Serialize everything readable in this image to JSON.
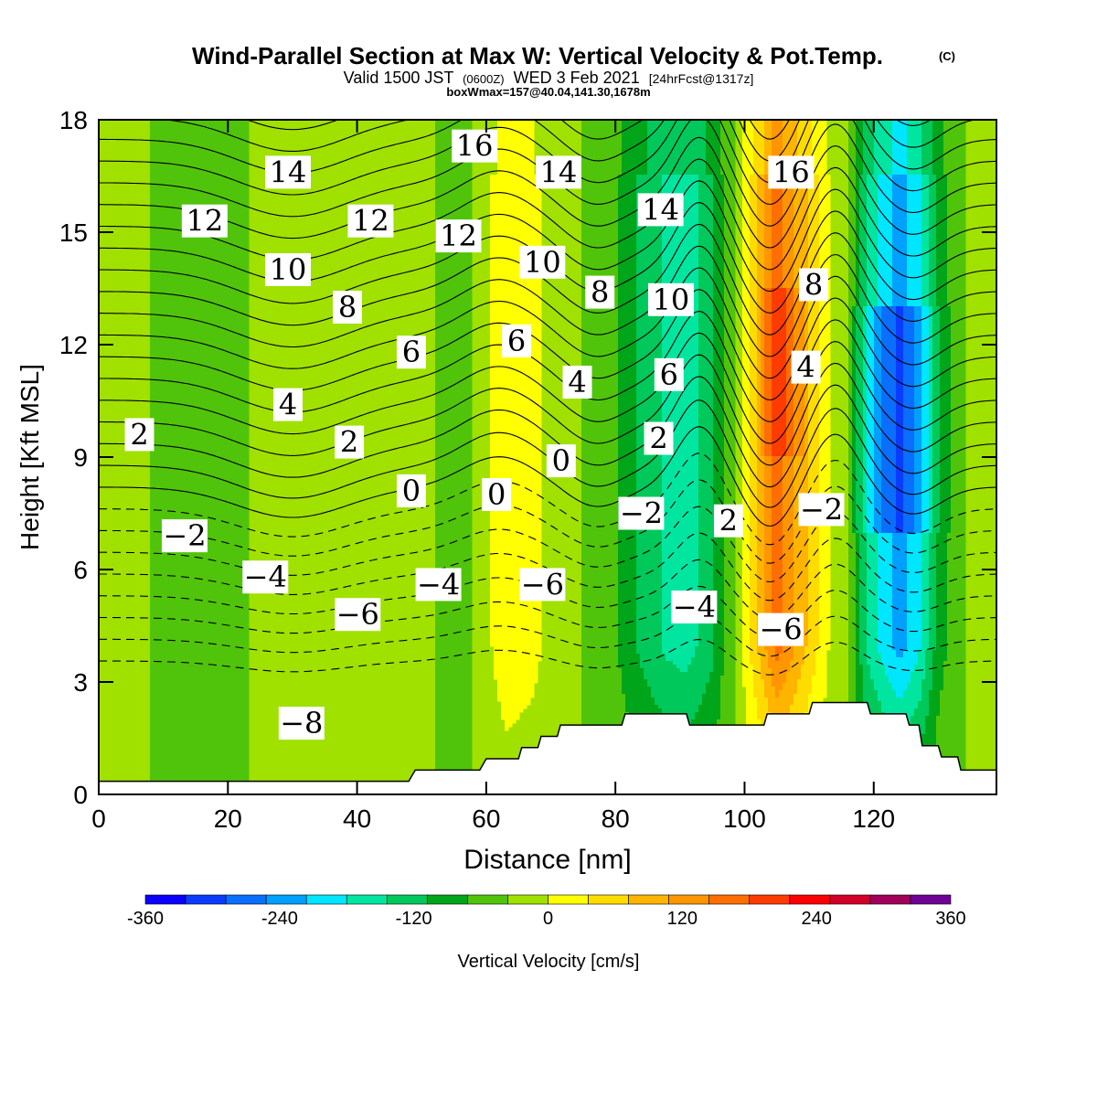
{
  "title": {
    "main": "Wind-Parallel Section at Max W: Vertical Velocity & Pot.Temp.",
    "copyright": "(C)",
    "valid_prefix": "Valid 1500 JST",
    "valid_utc": "(0600Z)",
    "valid_date": "WED 3 Feb 2021",
    "forecast": "[24hrFcst@1317z]",
    "boxinfo": "boxWmax=157@40.04,141.30,1678m"
  },
  "chart_data": {
    "type": "heatmap",
    "xlabel": "Distance [nm]",
    "ylabel": "Height [Kft MSL]",
    "xlim": [
      0,
      139
    ],
    "ylim": [
      0,
      18
    ],
    "xticks": [
      "0",
      "20",
      "40",
      "60",
      "80",
      "100",
      "120"
    ],
    "yticks": [
      "0",
      "3",
      "6",
      "9",
      "12",
      "15",
      "18"
    ],
    "colorbar": {
      "label": "Vertical Velocity [cm/s]",
      "range": [
        -360,
        360
      ],
      "step": 40,
      "tick_labels": [
        "-360",
        "-240",
        "-120",
        "0",
        "120",
        "240",
        "360"
      ],
      "colors": [
        "#0a00ff",
        "#0a3cff",
        "#0a6eff",
        "#00a0ff",
        "#00e6ff",
        "#00e6a0",
        "#00c85a",
        "#00a51a",
        "#50c40a",
        "#a0e100",
        "#ffff00",
        "#ffdc00",
        "#ffb400",
        "#ff9600",
        "#ff6e00",
        "#ff3c00",
        "#ff0000",
        "#d20028",
        "#a0005a",
        "#6e0096"
      ]
    },
    "velocity_columns": [
      {
        "x": 0,
        "w": 0
      },
      {
        "x": 4,
        "w": 10
      },
      {
        "x": 10,
        "w": -5
      },
      {
        "x": 20,
        "w": -5
      },
      {
        "x": 30,
        "w": 12
      },
      {
        "x": 40,
        "w": 15
      },
      {
        "x": 48,
        "w": 6
      },
      {
        "x": 55,
        "w": -5
      },
      {
        "x": 58,
        "w": 0
      },
      {
        "x": 63,
        "w": 70
      },
      {
        "x": 67,
        "w": 55
      },
      {
        "x": 72,
        "w": 10
      },
      {
        "x": 78,
        "w": -10
      },
      {
        "x": 84,
        "w": -90
      },
      {
        "x": 88,
        "w": -130
      },
      {
        "x": 91,
        "w": -140
      },
      {
        "x": 95,
        "w": -90
      },
      {
        "x": 99,
        "w": 20
      },
      {
        "x": 102,
        "w": 120
      },
      {
        "x": 105,
        "w": 220
      },
      {
        "x": 107,
        "w": 180
      },
      {
        "x": 110,
        "w": 110
      },
      {
        "x": 113,
        "w": 40
      },
      {
        "x": 116,
        "w": 0
      },
      {
        "x": 119,
        "w": -130
      },
      {
        "x": 122,
        "w": -190
      },
      {
        "x": 124,
        "w": -220
      },
      {
        "x": 127,
        "w": -170
      },
      {
        "x": 130,
        "w": -60
      },
      {
        "x": 134,
        "w": 0
      },
      {
        "x": 139,
        "w": 20
      }
    ],
    "terrain_kft": [
      [
        0,
        0.35
      ],
      [
        48,
        0.35
      ],
      [
        49,
        0.65
      ],
      [
        59,
        0.65
      ],
      [
        60,
        0.95
      ],
      [
        65,
        0.95
      ],
      [
        65.5,
        1.25
      ],
      [
        68,
        1.25
      ],
      [
        68.5,
        1.55
      ],
      [
        71,
        1.55
      ],
      [
        71.5,
        1.85
      ],
      [
        81,
        1.85
      ],
      [
        81.5,
        2.15
      ],
      [
        91,
        2.15
      ],
      [
        91.5,
        1.85
      ],
      [
        103,
        1.85
      ],
      [
        103.5,
        2.15
      ],
      [
        110,
        2.15
      ],
      [
        110.5,
        2.45
      ],
      [
        119,
        2.45
      ],
      [
        119.5,
        2.15
      ],
      [
        125,
        2.15
      ],
      [
        125.5,
        1.85
      ],
      [
        127,
        1.85
      ],
      [
        127.5,
        1.3
      ],
      [
        130,
        1.3
      ],
      [
        130.5,
        1.0
      ],
      [
        133,
        1.0
      ],
      [
        133.5,
        0.65
      ],
      [
        139,
        0.65
      ]
    ],
    "potential_temperature": {
      "units": "deg C",
      "contour_interval": 1,
      "range": [
        -8,
        18
      ],
      "labels": [
        {
          "value": "16",
          "x": 58.2,
          "y": 17.3
        },
        {
          "value": "14",
          "x": 29.3,
          "y": 16.6
        },
        {
          "value": "14",
          "x": 71.2,
          "y": 16.6
        },
        {
          "value": "14",
          "x": 87.0,
          "y": 15.6
        },
        {
          "value": "16",
          "x": 107.2,
          "y": 16.6
        },
        {
          "value": "12",
          "x": 16.4,
          "y": 15.3
        },
        {
          "value": "12",
          "x": 42.1,
          "y": 15.3
        },
        {
          "value": "12",
          "x": 55.7,
          "y": 14.9
        },
        {
          "value": "10",
          "x": 29.3,
          "y": 14.0
        },
        {
          "value": "10",
          "x": 68.7,
          "y": 14.2
        },
        {
          "value": "10",
          "x": 88.6,
          "y": 13.2
        },
        {
          "value": "8",
          "x": 38.5,
          "y": 13.0
        },
        {
          "value": "8",
          "x": 77.6,
          "y": 13.4
        },
        {
          "value": "8",
          "x": 110.7,
          "y": 13.6
        },
        {
          "value": "6",
          "x": 48.4,
          "y": 11.8
        },
        {
          "value": "6",
          "x": 64.7,
          "y": 12.1
        },
        {
          "value": "6",
          "x": 88.3,
          "y": 11.2
        },
        {
          "value": "4",
          "x": 29.3,
          "y": 10.4
        },
        {
          "value": "4",
          "x": 74.1,
          "y": 11.0
        },
        {
          "value": "4",
          "x": 109.5,
          "y": 11.4
        },
        {
          "value": "2",
          "x": 6.3,
          "y": 9.6
        },
        {
          "value": "2",
          "x": 38.8,
          "y": 9.4
        },
        {
          "value": "2",
          "x": 86.7,
          "y": 9.5
        },
        {
          "value": "0",
          "x": 48.4,
          "y": 8.1
        },
        {
          "value": "0",
          "x": 61.6,
          "y": 8.0
        },
        {
          "value": "0",
          "x": 71.6,
          "y": 8.9
        },
        {
          "value": "2",
          "x": 97.5,
          "y": 7.3
        },
        {
          "value": "−2",
          "x": 13.3,
          "y": 6.9
        },
        {
          "value": "−2",
          "x": 84.0,
          "y": 7.5
        },
        {
          "value": "−2",
          "x": 111.9,
          "y": 7.6
        },
        {
          "value": "−4",
          "x": 25.8,
          "y": 5.8
        },
        {
          "value": "−4",
          "x": 52.6,
          "y": 5.6
        },
        {
          "value": "−4",
          "x": 92.2,
          "y": 5.0
        },
        {
          "value": "−6",
          "x": 40.1,
          "y": 4.8
        },
        {
          "value": "−6",
          "x": 68.7,
          "y": 5.6
        },
        {
          "value": "−6",
          "x": 105.6,
          "y": 4.4
        },
        {
          "value": "−8",
          "x": 31.4,
          "y": 1.9
        }
      ]
    }
  }
}
